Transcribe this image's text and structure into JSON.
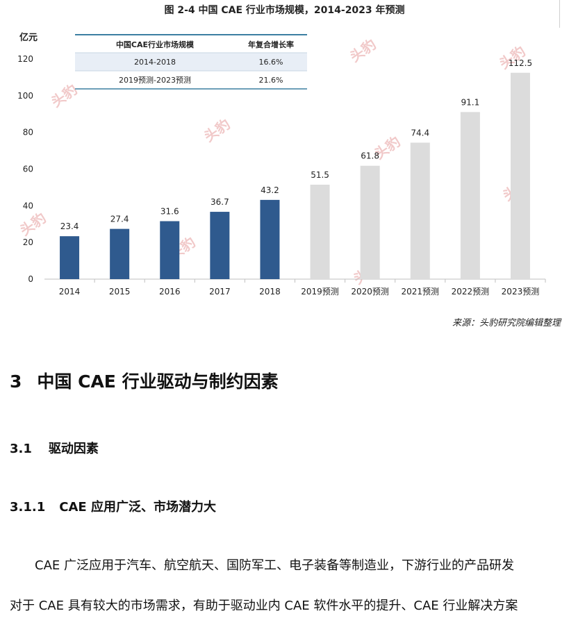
{
  "figure_title": "图 2-4 中国 CAE 行业市场规模，2014-2023 年预测",
  "chart_data": {
    "type": "bar",
    "ylabel": "亿元",
    "ylim": [
      0,
      120
    ],
    "yticks": [
      0,
      20,
      40,
      60,
      80,
      100,
      120
    ],
    "categories": [
      "2014",
      "2015",
      "2016",
      "2017",
      "2018",
      "2019预测",
      "2020预测",
      "2021预测",
      "2022预测",
      "2023预测"
    ],
    "values": [
      23.4,
      27.4,
      31.6,
      36.7,
      43.2,
      51.5,
      61.8,
      74.4,
      91.1,
      112.5
    ],
    "value_labels": [
      "23.4",
      "27.4",
      "31.6",
      "36.7",
      "43.2",
      "51.5",
      "61.8",
      "74.4",
      "91.1",
      "112.5"
    ],
    "colors": {
      "actual": "#2f5a8e",
      "forecast": "#dcdcdc"
    },
    "inset_table": {
      "headers": [
        "中国CAE行业市场规模",
        "年复合增长率"
      ],
      "rows": [
        [
          "2014-2018",
          "16.6%"
        ],
        [
          "2019预测-2023预测",
          "21.6%"
        ]
      ]
    },
    "watermark": "头豹"
  },
  "source": "来源：头豹研究院编辑整理",
  "section": {
    "num": "3",
    "title": "中国 CAE 行业驱动与制约因素"
  },
  "subsection": {
    "num": "3.1",
    "title": "驱动因素"
  },
  "subsubsection": {
    "num": "3.1.1",
    "title": "CAE 应用广泛、市场潜力大"
  },
  "paragraph": {
    "line1": "　　CAE 广泛应用于汽车、航空航天、国防军工、电子装备等制造业，下游行业的产品研发",
    "line2": "对于 CAE 具有较大的市场需求，有助于驱动业内 CAE 软件水平的提升、CAE 行业解决方案"
  }
}
